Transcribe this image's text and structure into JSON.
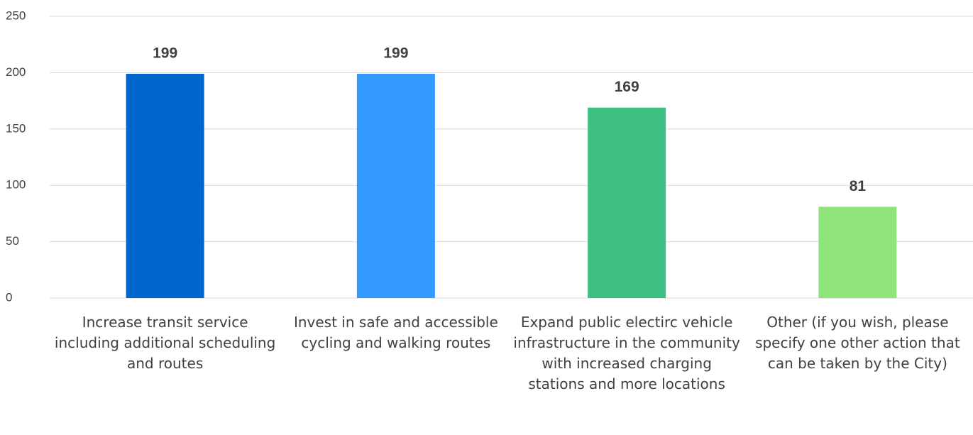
{
  "chart_data": {
    "type": "bar",
    "categories": [
      "Increase transit service including additional scheduling and routes",
      "Invest in safe and accessible cycling and walking routes",
      "Expand public electirc vehicle infrastructure in the community with increased charging stations and more locations",
      "Other (if you wish, please specify one other action that can be taken by the City)"
    ],
    "values": [
      199,
      199,
      169,
      81
    ],
    "colors": [
      "#0066cc",
      "#3399ff",
      "#3cbf80",
      "#8ee37a"
    ],
    "ylim": [
      0,
      250
    ],
    "yticks": [
      0,
      50,
      100,
      150,
      200,
      250
    ],
    "grid": true
  }
}
